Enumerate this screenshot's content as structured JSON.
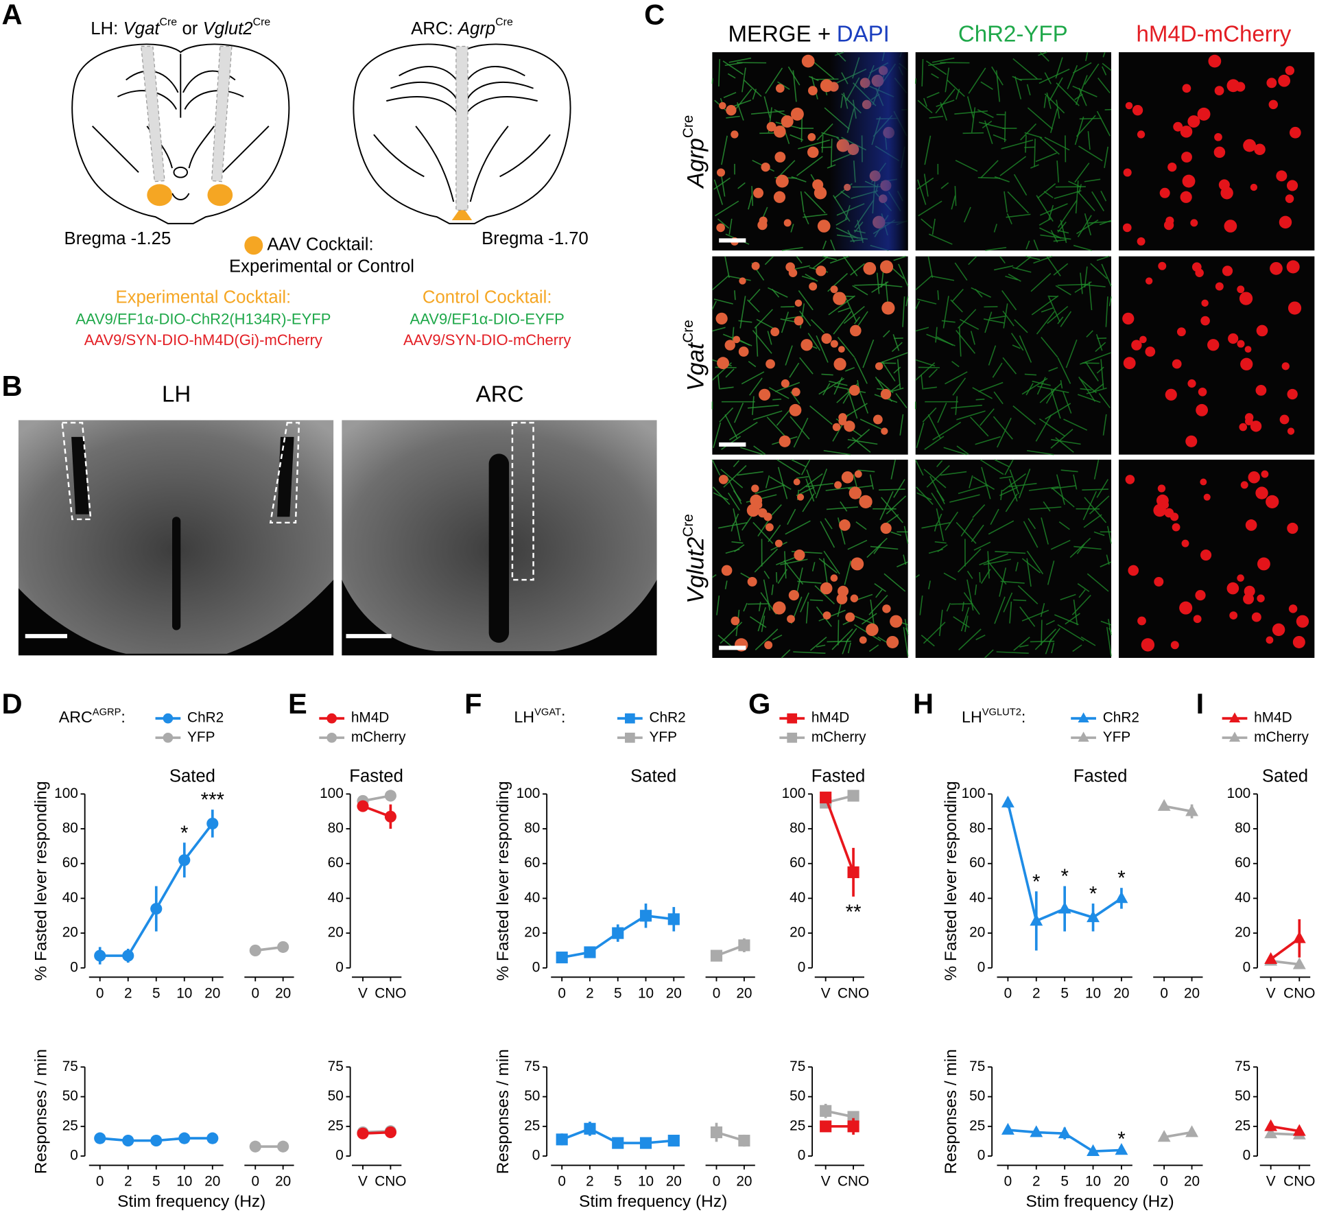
{
  "panel_A": {
    "letter": "A",
    "lh_title": {
      "prefix": "LH:",
      "gene1": "Vgat",
      "sup1": "Cre",
      "mid": "or",
      "gene2": "Vglut2",
      "sup2": "Cre"
    },
    "arc_title": {
      "prefix": "ARC:",
      "gene": "Agrp",
      "sup": "Cre"
    },
    "bregma_left": "Bregma -1.25",
    "bregma_right": "Bregma -1.70",
    "legend_line1": "AAV Cocktail:",
    "legend_line2": "Experimental or Control",
    "experimental": {
      "title": "Experimental Cocktail:",
      "virus1": "AAV9/EF1α-DIO-ChR2(H134R)-EYFP",
      "virus2": "AAV9/SYN-DIO-hM4D(Gi)-mCherry"
    },
    "control": {
      "title": "Control Cocktail:",
      "virus1": "AAV9/EF1α-DIO-EYFP",
      "virus2": "AAV9/SYN-DIO-mCherry"
    }
  },
  "panel_B": {
    "letter": "B",
    "left": "LH",
    "right": "ARC"
  },
  "panel_C": {
    "letter": "C",
    "merge": "MERGE +",
    "dapi": "DAPI",
    "green": "ChR2-YFP",
    "red": "hM4D-mCherry",
    "rows": [
      {
        "gene": "Agrp",
        "sup": "Cre"
      },
      {
        "gene": "Vgat",
        "sup": "Cre"
      },
      {
        "gene": "Vglut2",
        "sup": "Cre"
      }
    ]
  },
  "chart_data": [
    {
      "type": "line",
      "panel": "D",
      "legend_title": {
        "text": "ARC",
        "sup": "AGRP",
        "suffix": ":"
      },
      "title": "Sated",
      "ylabel": "% Fasted lever responding",
      "categories": [
        "0",
        "2",
        "5",
        "10",
        "20"
      ],
      "ylim": [
        0,
        100
      ],
      "yticks": [
        0,
        20,
        40,
        60,
        80,
        100
      ],
      "series": [
        {
          "name": "ChR2",
          "color": "#1e8ce6",
          "marker": "circle",
          "values": [
            7,
            7,
            34,
            62,
            83
          ],
          "errors": [
            5,
            4,
            13,
            10,
            8
          ]
        }
      ],
      "annotations": [
        {
          "category": "10",
          "text": "*"
        },
        {
          "category": "20",
          "text": "***"
        }
      ]
    },
    {
      "type": "line",
      "categories": [
        "0",
        "20"
      ],
      "ylim": [
        0,
        100
      ],
      "series": [
        {
          "name": "YFP",
          "color": "#aaaaaa",
          "marker": "circle",
          "values": [
            10,
            12
          ],
          "errors": [
            3,
            2
          ]
        }
      ]
    },
    {
      "type": "line",
      "ylabel": "Responses / min",
      "xlabel": "Stim frequency (Hz)",
      "categories": [
        "0",
        "2",
        "5",
        "10",
        "20"
      ],
      "ylim": [
        0,
        75
      ],
      "yticks": [
        0,
        25,
        50,
        75
      ],
      "series": [
        {
          "color": "#1e8ce6",
          "marker": "circle",
          "values": [
            15,
            13,
            13,
            15,
            15
          ],
          "errors": [
            2,
            2,
            2,
            2,
            2
          ]
        }
      ]
    },
    {
      "type": "line",
      "categories": [
        "0",
        "20"
      ],
      "ylim": [
        0,
        75
      ],
      "series": [
        {
          "color": "#aaaaaa",
          "marker": "circle",
          "values": [
            8,
            8
          ],
          "errors": [
            1,
            1
          ]
        }
      ]
    },
    {
      "type": "line",
      "panel": "E",
      "title": "Fasted",
      "categories": [
        "V",
        "CNO"
      ],
      "ylim": [
        0,
        100
      ],
      "yticks": [
        0,
        20,
        40,
        60,
        80,
        100
      ],
      "series": [
        {
          "name": "hM4D",
          "color": "#e8161c",
          "marker": "circle",
          "values": [
            93,
            87
          ],
          "errors": [
            3,
            7
          ]
        },
        {
          "name": "mCherry",
          "color": "#aaaaaa",
          "marker": "circle",
          "values": [
            96,
            99
          ],
          "errors": [
            1,
            1
          ]
        }
      ]
    },
    {
      "type": "line",
      "categories": [
        "V",
        "CNO"
      ],
      "ylim": [
        0,
        75
      ],
      "yticks": [
        0,
        25,
        50,
        75
      ],
      "series": [
        {
          "color": "#e8161c",
          "marker": "circle",
          "values": [
            19,
            20
          ],
          "errors": [
            3,
            3
          ]
        },
        {
          "color": "#aaaaaa",
          "marker": "circle",
          "values": [
            20,
            21
          ],
          "errors": [
            2,
            2
          ]
        }
      ]
    },
    {
      "type": "line",
      "panel": "F",
      "legend_title": {
        "text": "LH",
        "sup": "VGAT",
        "suffix": ":"
      },
      "title": "Sated",
      "ylabel": "% Fasted lever responding",
      "categories": [
        "0",
        "2",
        "5",
        "10",
        "20"
      ],
      "ylim": [
        0,
        100
      ],
      "yticks": [
        0,
        20,
        40,
        60,
        80,
        100
      ],
      "series": [
        {
          "name": "ChR2",
          "color": "#1e8ce6",
          "marker": "square",
          "values": [
            6,
            9,
            20,
            30,
            28
          ],
          "errors": [
            2,
            3,
            5,
            7,
            7
          ]
        }
      ]
    },
    {
      "type": "line",
      "categories": [
        "0",
        "20"
      ],
      "ylim": [
        0,
        100
      ],
      "series": [
        {
          "name": "YFP",
          "color": "#aaaaaa",
          "marker": "square",
          "values": [
            7,
            13
          ],
          "errors": [
            2,
            4
          ]
        }
      ]
    },
    {
      "type": "line",
      "ylabel": "Responses / min",
      "xlabel": "Stim frequency (Hz)",
      "categories": [
        "0",
        "2",
        "5",
        "10",
        "20"
      ],
      "ylim": [
        0,
        75
      ],
      "yticks": [
        0,
        25,
        50,
        75
      ],
      "series": [
        {
          "color": "#1e8ce6",
          "marker": "square",
          "values": [
            14,
            23,
            11,
            11,
            13
          ],
          "errors": [
            5,
            6,
            2,
            2,
            3
          ]
        }
      ]
    },
    {
      "type": "line",
      "categories": [
        "0",
        "20"
      ],
      "ylim": [
        0,
        75
      ],
      "series": [
        {
          "color": "#aaaaaa",
          "marker": "square",
          "values": [
            20,
            13
          ],
          "errors": [
            8,
            5
          ]
        }
      ]
    },
    {
      "type": "line",
      "panel": "G",
      "title": "Fasted",
      "categories": [
        "V",
        "CNO"
      ],
      "ylim": [
        0,
        100
      ],
      "yticks": [
        0,
        20,
        40,
        60,
        80,
        100
      ],
      "series": [
        {
          "name": "hM4D",
          "color": "#e8161c",
          "marker": "square",
          "values": [
            98,
            55
          ],
          "errors": [
            2,
            14
          ]
        },
        {
          "name": "mCherry",
          "color": "#aaaaaa",
          "marker": "square",
          "values": [
            95,
            99
          ],
          "errors": [
            3,
            1
          ]
        }
      ],
      "annotations": [
        {
          "category": "CNO",
          "text": "**",
          "position": "below"
        }
      ]
    },
    {
      "type": "line",
      "categories": [
        "V",
        "CNO"
      ],
      "ylim": [
        0,
        75
      ],
      "yticks": [
        0,
        25,
        50,
        75
      ],
      "series": [
        {
          "color": "#e8161c",
          "marker": "square",
          "values": [
            25,
            25
          ],
          "errors": [
            4,
            7
          ]
        },
        {
          "color": "#aaaaaa",
          "marker": "square",
          "values": [
            38,
            33
          ],
          "errors": [
            6,
            4
          ]
        }
      ]
    },
    {
      "type": "line",
      "panel": "H",
      "legend_title": {
        "text": "LH",
        "sup": "VGLUT2",
        "suffix": ":"
      },
      "title": "Fasted",
      "ylabel": "% Fasted lever responding",
      "categories": [
        "0",
        "2",
        "5",
        "10",
        "20"
      ],
      "ylim": [
        0,
        100
      ],
      "yticks": [
        0,
        20,
        40,
        60,
        80,
        100
      ],
      "series": [
        {
          "name": "ChR2",
          "color": "#1e8ce6",
          "marker": "triangle",
          "values": [
            95,
            27,
            34,
            29,
            40
          ],
          "errors": [
            3,
            17,
            13,
            8,
            6
          ]
        }
      ],
      "annotations": [
        {
          "category": "2",
          "text": "*"
        },
        {
          "category": "5",
          "text": "*"
        },
        {
          "category": "10",
          "text": "*"
        },
        {
          "category": "20",
          "text": "*"
        }
      ]
    },
    {
      "type": "line",
      "categories": [
        "0",
        "20"
      ],
      "ylim": [
        0,
        100
      ],
      "series": [
        {
          "name": "YFP",
          "color": "#aaaaaa",
          "marker": "triangle",
          "values": [
            93,
            90
          ],
          "errors": [
            2,
            4
          ]
        }
      ]
    },
    {
      "type": "line",
      "ylabel": "Responses / min",
      "xlabel": "Stim frequency (Hz)",
      "categories": [
        "0",
        "2",
        "5",
        "10",
        "20"
      ],
      "ylim": [
        0,
        75
      ],
      "yticks": [
        0,
        25,
        50,
        75
      ],
      "series": [
        {
          "color": "#1e8ce6",
          "marker": "triangle",
          "values": [
            22,
            20,
            19,
            4,
            5
          ],
          "errors": [
            2,
            2,
            5,
            2,
            1
          ]
        }
      ],
      "annotations": [
        {
          "category": "20",
          "text": "*"
        }
      ]
    },
    {
      "type": "line",
      "categories": [
        "0",
        "20"
      ],
      "ylim": [
        0,
        75
      ],
      "series": [
        {
          "color": "#aaaaaa",
          "marker": "triangle",
          "values": [
            16,
            20
          ],
          "errors": [
            3,
            2
          ]
        }
      ]
    },
    {
      "type": "line",
      "panel": "I",
      "title": "Sated",
      "categories": [
        "V",
        "CNO"
      ],
      "ylim": [
        0,
        100
      ],
      "yticks": [
        0,
        20,
        40,
        60,
        80,
        100
      ],
      "series": [
        {
          "name": "hM4D",
          "color": "#e8161c",
          "marker": "triangle",
          "values": [
            5,
            17
          ],
          "errors": [
            2,
            11
          ]
        },
        {
          "name": "mCherry",
          "color": "#aaaaaa",
          "marker": "triangle",
          "values": [
            4,
            2
          ],
          "errors": [
            1,
            1
          ]
        }
      ]
    },
    {
      "type": "line",
      "categories": [
        "V",
        "CNO"
      ],
      "ylim": [
        0,
        75
      ],
      "yticks": [
        0,
        25,
        50,
        75
      ],
      "series": [
        {
          "color": "#e8161c",
          "marker": "triangle",
          "values": [
            25,
            21
          ],
          "errors": [
            4,
            3
          ]
        },
        {
          "color": "#aaaaaa",
          "marker": "triangle",
          "values": [
            19,
            18
          ],
          "errors": [
            3,
            2
          ]
        }
      ]
    }
  ]
}
